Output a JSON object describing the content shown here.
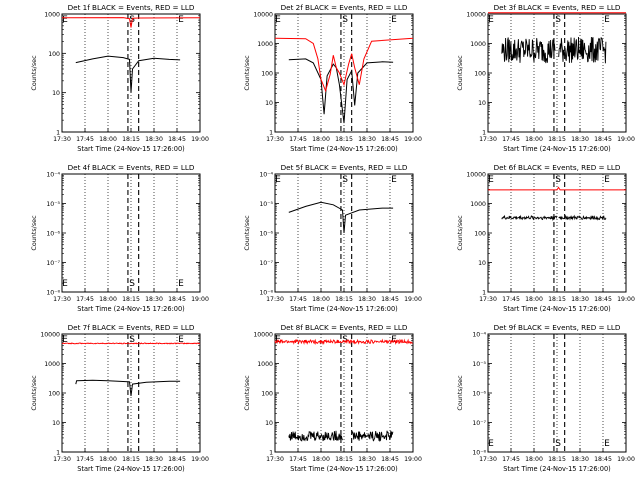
{
  "chart_data": [
    {
      "type": "line",
      "title": "Det 1f BLACK = Events, RED = LLD",
      "ylabel": "Counts/sec",
      "xlabel": "Start Time (24-Nov-15 17:26:00)",
      "y_scale": "log",
      "ylim": [
        1,
        1000
      ],
      "xlim": [
        "17:30",
        "19:00"
      ],
      "x_ticks": [
        "17:30",
        "17:45",
        "18:00",
        "18:15",
        "18:30",
        "18:45",
        "19:00"
      ],
      "y_ticks": [
        "1",
        "10",
        "100",
        "1000"
      ],
      "markers": [
        {
          "label": "E",
          "x": "17:30"
        },
        {
          "label": "S",
          "x": "18:17"
        },
        {
          "label": "E",
          "x": "18:45"
        }
      ],
      "series": [
        {
          "color": "#000000",
          "kind": "smooth",
          "points": [
            [
              "17:39",
              58
            ],
            [
              "17:50",
              72
            ],
            [
              "18:00",
              85
            ],
            [
              "18:10",
              78
            ],
            [
              "18:14",
              70
            ],
            [
              "18:15",
              10
            ],
            [
              "18:16",
              40
            ],
            [
              "18:20",
              65
            ],
            [
              "18:30",
              75
            ],
            [
              "18:40",
              70
            ],
            [
              "18:47",
              68
            ]
          ]
        },
        {
          "color": "#ff0000",
          "kind": "smooth",
          "points": [
            [
              "17:30",
              800
            ],
            [
              "18:10",
              810
            ],
            [
              "18:14",
              760
            ],
            [
              "18:15",
              450
            ],
            [
              "18:16",
              780
            ],
            [
              "18:20",
              790
            ],
            [
              "19:00",
              800
            ]
          ]
        }
      ]
    },
    {
      "type": "line",
      "title": "Det 2f BLACK = Events, RED = LLD",
      "ylabel": "Counts/sec",
      "xlabel": "Start Time (24-Nov-15 17:26:00)",
      "y_scale": "log",
      "ylim": [
        1,
        10000
      ],
      "xlim": [
        "17:30",
        "19:00"
      ],
      "x_ticks": [
        "17:30",
        "17:45",
        "18:00",
        "18:15",
        "18:30",
        "18:45",
        "19:00"
      ],
      "y_ticks": [
        "1",
        "10",
        "100",
        "1000",
        "10000"
      ],
      "markers": [
        {
          "label": "E",
          "x": "17:30"
        },
        {
          "label": "S",
          "x": "18:17"
        },
        {
          "label": "E",
          "x": "18:45"
        }
      ],
      "series": [
        {
          "color": "#000000",
          "kind": "smooth",
          "points": [
            [
              "17:39",
              280
            ],
            [
              "17:50",
              300
            ],
            [
              "17:55",
              220
            ],
            [
              "18:00",
              60
            ],
            [
              "18:02",
              4
            ],
            [
              "18:04",
              80
            ],
            [
              "18:08",
              200
            ],
            [
              "18:10",
              150
            ],
            [
              "18:12",
              40
            ],
            [
              "18:15",
              2
            ],
            [
              "18:17",
              60
            ],
            [
              "18:20",
              120
            ],
            [
              "18:22",
              8
            ],
            [
              "18:24",
              100
            ],
            [
              "18:30",
              220
            ],
            [
              "18:40",
              240
            ],
            [
              "18:47",
              230
            ]
          ]
        },
        {
          "color": "#ff0000",
          "kind": "smooth",
          "points": [
            [
              "17:30",
              1500
            ],
            [
              "17:50",
              1450
            ],
            [
              "17:55",
              1000
            ],
            [
              "17:58",
              300
            ],
            [
              "18:00",
              60
            ],
            [
              "18:03",
              25
            ],
            [
              "18:06",
              90
            ],
            [
              "18:08",
              400
            ],
            [
              "18:10",
              150
            ],
            [
              "18:12",
              100
            ],
            [
              "18:15",
              40
            ],
            [
              "18:18",
              200
            ],
            [
              "18:20",
              450
            ],
            [
              "18:22",
              150
            ],
            [
              "18:25",
              40
            ],
            [
              "18:28",
              300
            ],
            [
              "18:33",
              1200
            ],
            [
              "19:00",
              1500
            ]
          ]
        }
      ]
    },
    {
      "type": "line",
      "title": "Det 3f BLACK = Events, RED = LLD",
      "ylabel": "Counts/sec",
      "xlabel": "Start Time (24-Nov-15 17:26:00)",
      "y_scale": "log",
      "ylim": [
        1,
        10000
      ],
      "xlim": [
        "17:30",
        "19:00"
      ],
      "x_ticks": [
        "17:30",
        "17:45",
        "18:00",
        "18:15",
        "18:30",
        "18:45",
        "19:00"
      ],
      "y_ticks": [
        "1",
        "10",
        "100",
        "1000",
        "10000"
      ],
      "markers": [
        {
          "label": "E",
          "x": "17:30"
        },
        {
          "label": "S",
          "x": "18:17"
        },
        {
          "label": "E",
          "x": "18:45"
        }
      ],
      "series": [
        {
          "color": "#000000",
          "kind": "noisy",
          "from": "17:39",
          "to": "18:47",
          "level": 600,
          "noise": 0.9,
          "gaps": [
            [
              "18:14",
              "18:16"
            ]
          ]
        },
        {
          "color": "#ff0000",
          "kind": "smooth",
          "points": [
            [
              "17:30",
              11000
            ],
            [
              "19:00",
              11000
            ]
          ]
        }
      ]
    },
    {
      "type": "line",
      "title": "Det 4f BLACK = Events, RED = LLD",
      "ylabel": "Counts/sec",
      "xlabel": "Start Time (24-Nov-15 17:26:00)",
      "y_scale": "log",
      "ylim": [
        1e-08,
        0.0001
      ],
      "xlim": [
        "17:30",
        "19:00"
      ],
      "x_ticks": [
        "17:30",
        "17:45",
        "18:00",
        "18:15",
        "18:30",
        "18:45",
        "19:00"
      ],
      "y_ticks": [
        "10⁻⁸",
        "10⁻⁷",
        "10⁻⁶",
        "10⁻⁵",
        "10⁻⁴"
      ],
      "markers": [
        {
          "label": "E",
          "x": "17:30"
        },
        {
          "label": "S",
          "x": "18:17"
        },
        {
          "label": "E",
          "x": "18:45"
        }
      ],
      "series": []
    },
    {
      "type": "line",
      "title": "Det 5f BLACK = Events, RED = LLD",
      "ylabel": "Counts/sec",
      "xlabel": "Start Time (24-Nov-15 17:26:00)",
      "y_scale": "log",
      "ylim": [
        1e-08,
        0.0001
      ],
      "xlim": [
        "17:30",
        "19:00"
      ],
      "x_ticks": [
        "17:30",
        "17:45",
        "18:00",
        "18:15",
        "18:30",
        "18:45",
        "19:00"
      ],
      "y_ticks": [
        "10⁻⁸",
        "10⁻⁷",
        "10⁻⁶",
        "10⁻⁵",
        "10⁻⁴"
      ],
      "markers": [
        {
          "label": "E",
          "x": "17:30"
        },
        {
          "label": "S",
          "x": "18:17"
        },
        {
          "label": "E",
          "x": "18:45"
        }
      ],
      "series": [
        {
          "color": "#000000",
          "kind": "smooth",
          "points": [
            [
              "17:39",
              5e-06
            ],
            [
              "17:50",
              8e-06
            ],
            [
              "18:00",
              1.1e-05
            ],
            [
              "18:08",
              9e-06
            ],
            [
              "18:14",
              6e-06
            ],
            [
              "18:15",
              1e-06
            ],
            [
              "18:16",
              4e-06
            ],
            [
              "18:25",
              6e-06
            ],
            [
              "18:40",
              7e-06
            ],
            [
              "18:47",
              7e-06
            ]
          ]
        }
      ]
    },
    {
      "type": "line",
      "title": "Det 6f BLACK = Events, RED = LLD",
      "ylabel": "Counts/sec",
      "xlabel": "Start Time (24-Nov-15 17:26:00)",
      "y_scale": "log",
      "ylim": [
        1,
        10000
      ],
      "xlim": [
        "17:30",
        "19:00"
      ],
      "x_ticks": [
        "17:30",
        "17:45",
        "18:00",
        "18:15",
        "18:30",
        "18:45",
        "19:00"
      ],
      "y_ticks": [
        "1",
        "10",
        "100",
        "1000",
        "10000"
      ],
      "markers": [
        {
          "label": "E",
          "x": "17:30"
        },
        {
          "label": "S",
          "x": "18:17"
        },
        {
          "label": "E",
          "x": "18:45"
        }
      ],
      "series": [
        {
          "color": "#000000",
          "kind": "noisy",
          "from": "17:39",
          "to": "18:47",
          "level": 330,
          "noise": 0.12,
          "gaps": [
            [
              "18:15",
              "18:16"
            ]
          ]
        },
        {
          "color": "#ff0000",
          "kind": "smooth",
          "points": [
            [
              "17:30",
              2900
            ],
            [
              "18:15",
              2900
            ],
            [
              "18:16",
              3500
            ],
            [
              "18:17",
              2900
            ],
            [
              "19:00",
              2900
            ]
          ]
        }
      ]
    },
    {
      "type": "line",
      "title": "Det 7f BLACK = Events, RED = LLD",
      "ylabel": "Counts/sec",
      "xlabel": "Start Time (24-Nov-15 17:26:00)",
      "y_scale": "log",
      "ylim": [
        1,
        10000
      ],
      "xlim": [
        "17:30",
        "19:00"
      ],
      "x_ticks": [
        "17:30",
        "17:45",
        "18:00",
        "18:15",
        "18:30",
        "18:45",
        "19:00"
      ],
      "y_ticks": [
        "1",
        "10",
        "100",
        "1000",
        "10000"
      ],
      "markers": [
        {
          "label": "E",
          "x": "17:30"
        },
        {
          "label": "S",
          "x": "18:17"
        },
        {
          "label": "E",
          "x": "18:45"
        }
      ],
      "series": [
        {
          "color": "#000000",
          "kind": "smooth",
          "points": [
            [
              "17:39",
              200
            ],
            [
              "17:39.5",
              260
            ],
            [
              "17:50",
              270
            ],
            [
              "18:00",
              260
            ],
            [
              "18:14",
              240
            ],
            [
              "18:15",
              80
            ],
            [
              "18:16",
              200
            ],
            [
              "18:25",
              230
            ],
            [
              "18:40",
              250
            ],
            [
              "18:47",
              250
            ]
          ]
        },
        {
          "color": "#ff0000",
          "kind": "noisy",
          "from": "17:30",
          "to": "19:00",
          "level": 4800,
          "noise": 0.03,
          "gaps": []
        }
      ]
    },
    {
      "type": "line",
      "title": "Det 8f BLACK = Events, RED = LLD",
      "ylabel": "Counts/sec",
      "xlabel": "Start Time (24-Nov-15 17:26:00)",
      "y_scale": "log",
      "ylim": [
        1,
        10000
      ],
      "xlim": [
        "17:30",
        "19:00"
      ],
      "x_ticks": [
        "17:30",
        "17:45",
        "18:00",
        "18:15",
        "18:30",
        "18:45",
        "19:00"
      ],
      "y_ticks": [
        "1",
        "10",
        "100",
        "1000",
        "10000"
      ],
      "markers": [
        {
          "label": "E",
          "x": "17:30"
        },
        {
          "label": "S",
          "x": "18:17"
        },
        {
          "label": "E",
          "x": "18:45"
        }
      ],
      "series": [
        {
          "color": "#000000",
          "kind": "noisy",
          "from": "17:39",
          "to": "18:47",
          "level": 3.5,
          "noise": 0.35,
          "gaps": [
            [
              "18:14",
              "18:20"
            ]
          ]
        },
        {
          "color": "#ff0000",
          "kind": "noisy",
          "from": "17:30",
          "to": "19:00",
          "level": 5500,
          "noise": 0.12,
          "gaps": []
        }
      ]
    },
    {
      "type": "line",
      "title": "Det 9f BLACK = Events, RED = LLD",
      "ylabel": "Counts/sec",
      "xlabel": "Start Time (24-Nov-15 17:26:00)",
      "y_scale": "log",
      "ylim": [
        1e-08,
        0.0001
      ],
      "xlim": [
        "17:30",
        "19:00"
      ],
      "x_ticks": [
        "17:30",
        "17:45",
        "18:00",
        "18:15",
        "18:30",
        "18:45",
        "19:00"
      ],
      "y_ticks": [
        "10⁻⁸",
        "10⁻⁷",
        "10⁻⁶",
        "10⁻⁵",
        "10⁻⁴"
      ],
      "markers": [
        {
          "label": "E",
          "x": "17:30"
        },
        {
          "label": "S",
          "x": "18:17"
        },
        {
          "label": "E",
          "x": "18:45"
        }
      ],
      "series": []
    }
  ]
}
